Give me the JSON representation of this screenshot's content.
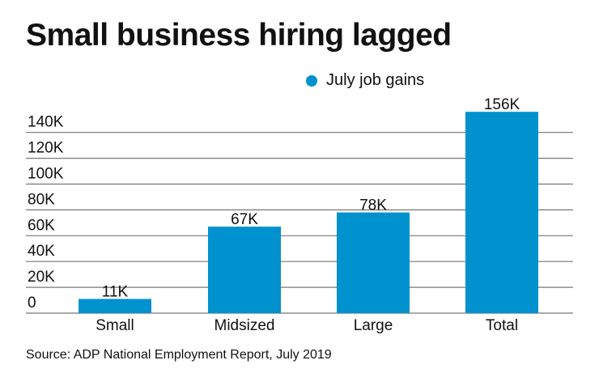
{
  "title": "Small business hiring lagged",
  "source": "Source: ADP National Employment Report, July 2019",
  "colors": {
    "bar": "#0091cf",
    "grid": "#777777"
  },
  "chart_data": {
    "type": "bar",
    "title": "Small business hiring lagged",
    "categories": [
      "Small",
      "Midsized",
      "Large",
      "Total"
    ],
    "series": [
      {
        "name": "July job gains",
        "values": [
          11,
          67,
          78,
          156
        ]
      }
    ],
    "data_labels": [
      "11K",
      "67K",
      "78K",
      "156K"
    ],
    "yticks": [
      0,
      20,
      40,
      60,
      80,
      100,
      120,
      140
    ],
    "ytick_labels": [
      "0",
      "20K",
      "40K",
      "60K",
      "80K",
      "100K",
      "120K",
      "140K"
    ],
    "ylim": [
      0,
      156
    ],
    "xlabel": "",
    "ylabel": "",
    "grid": true,
    "legend": "top-right"
  }
}
